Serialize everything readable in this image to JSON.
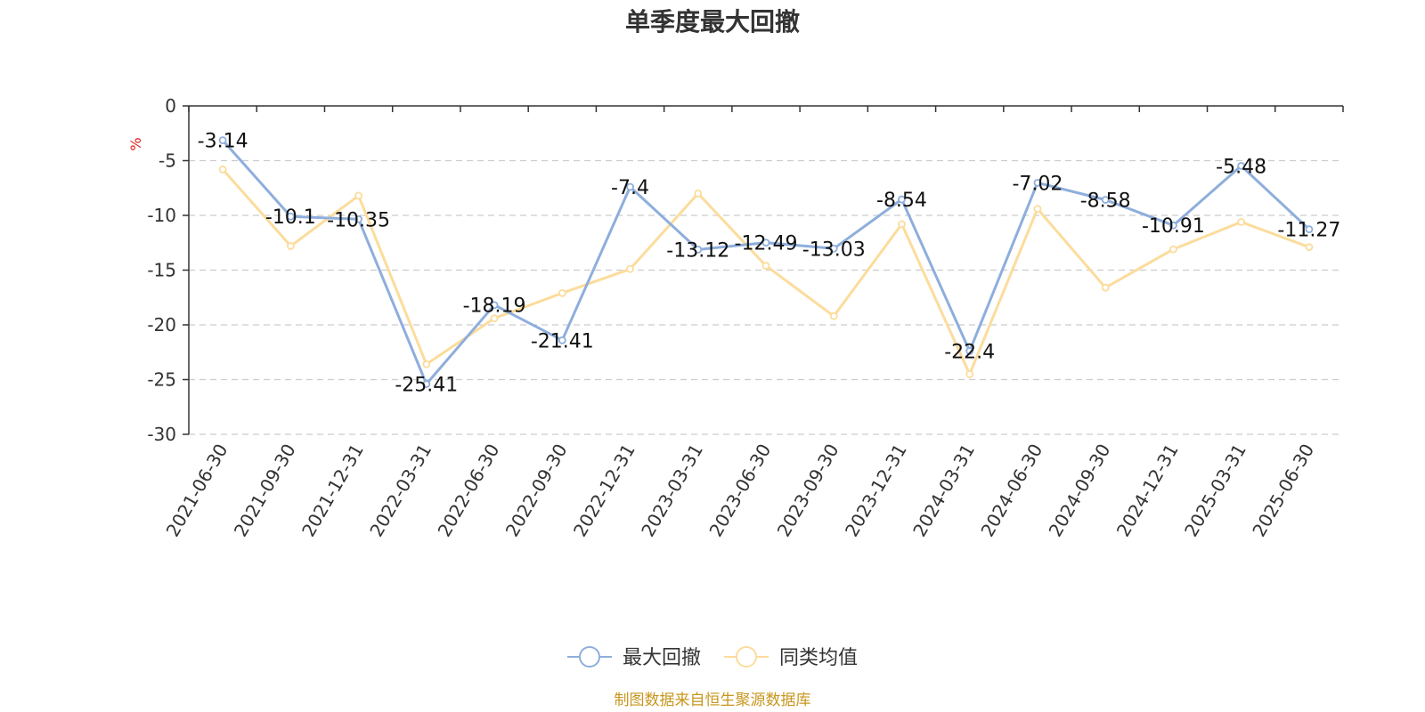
{
  "chart_data": {
    "type": "line",
    "title": "单季度最大回撤",
    "ylabel": "%",
    "ylim": [
      -30,
      0
    ],
    "yticks": [
      0,
      -5,
      -10,
      -15,
      -20,
      -25,
      -30
    ],
    "grid": "horizontal-dashed",
    "legend_position": "bottom-center",
    "categories": [
      "2021-06-30",
      "2021-09-30",
      "2021-12-31",
      "2022-03-31",
      "2022-06-30",
      "2022-09-30",
      "2022-12-31",
      "2023-03-31",
      "2023-06-30",
      "2023-09-30",
      "2023-12-31",
      "2024-03-31",
      "2024-06-30",
      "2024-09-30",
      "2024-12-31",
      "2025-03-31",
      "2025-06-30"
    ],
    "series": [
      {
        "name": "最大回撤",
        "color": "#8eaedc",
        "values": [
          -3.14,
          -10.1,
          -10.35,
          -25.41,
          -18.19,
          -21.41,
          -7.4,
          -13.12,
          -12.49,
          -13.03,
          -8.54,
          -22.4,
          -7.02,
          -8.58,
          -10.91,
          -5.48,
          -11.27
        ],
        "labels": [
          "-3.14",
          "-10.1",
          "-10.35",
          "-25.41",
          "-18.19",
          "-21.41",
          "-7.4",
          "-13.12",
          "-12.49",
          "-13.03",
          "-8.54",
          "-22.4",
          "-7.02",
          "-8.58",
          "-10.91",
          "-5.48",
          "-11.27"
        ]
      },
      {
        "name": "同类均值",
        "color": "#fcdc9c",
        "values": [
          -5.8,
          -12.8,
          -8.2,
          -23.6,
          -19.4,
          -17.1,
          -14.9,
          -8.0,
          -14.6,
          -19.2,
          -10.8,
          -24.5,
          -9.4,
          -16.6,
          -13.1,
          -10.6,
          -12.9
        ]
      }
    ],
    "source": "制图数据来自恒生聚源数据库"
  }
}
